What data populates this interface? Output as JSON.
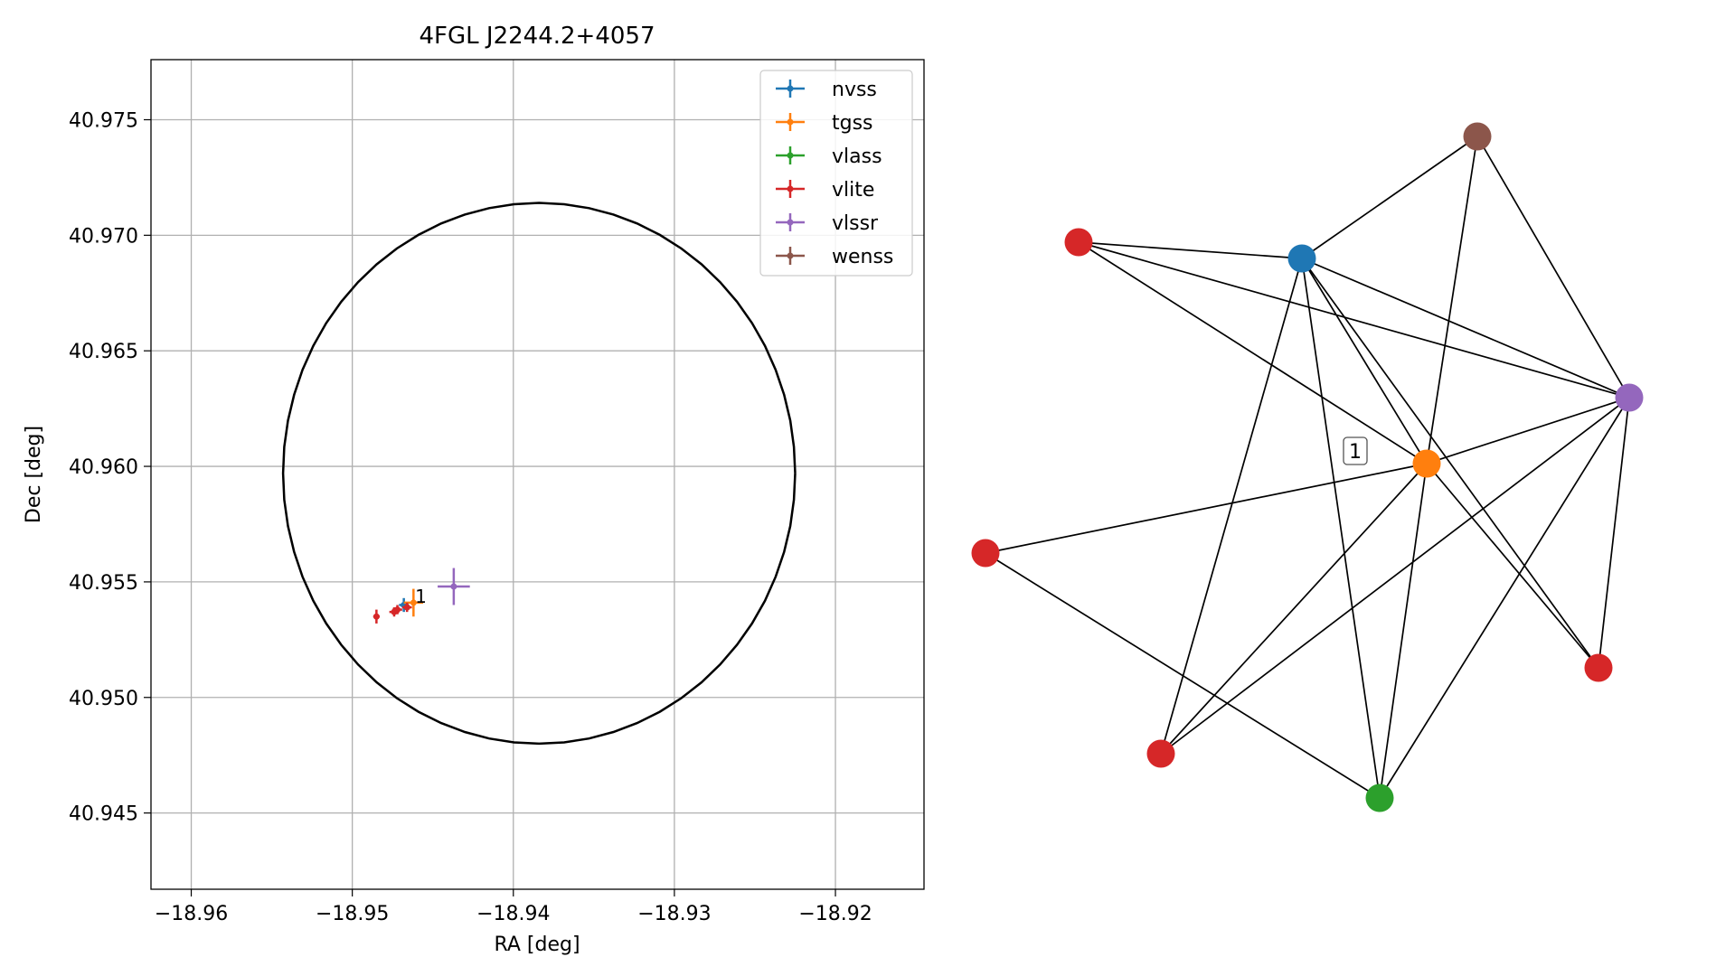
{
  "chart_data": [
    {
      "type": "scatter",
      "title": "4FGL J2244.2+4057",
      "xlabel": "RA [deg]",
      "ylabel": "Dec [deg]",
      "xlim": [
        -18.9625,
        -18.9145
      ],
      "ylim": [
        40.9417,
        40.9776
      ],
      "xticks": [
        -18.96,
        -18.95,
        -18.94,
        -18.93,
        -18.92
      ],
      "xtick_labels": [
        "−18.96",
        "−18.95",
        "−18.94",
        "−18.93",
        "−18.92"
      ],
      "yticks": [
        40.945,
        40.95,
        40.955,
        40.96,
        40.965,
        40.97,
        40.975
      ],
      "ytick_labels": [
        "40.945",
        "40.950",
        "40.955",
        "40.960",
        "40.965",
        "40.970",
        "40.975"
      ],
      "grid": true,
      "legend_position": "top-right",
      "circle": {
        "center_x": -18.9384,
        "center_y": 40.9597,
        "radius_x": 0.0159,
        "radius_y": 0.0117,
        "color": "#000000"
      },
      "series": [
        {
          "name": "nvss",
          "color": "#1f77b4",
          "points": [
            {
              "x": -18.9468,
              "y": 40.954,
              "xerr": 0.0003,
              "yerr": 0.0003
            }
          ]
        },
        {
          "name": "tgss",
          "color": "#ff7f0e",
          "points": [
            {
              "x": -18.9462,
              "y": 40.9541,
              "xerr": 0.0006,
              "yerr": 0.0006
            }
          ]
        },
        {
          "name": "vlass",
          "color": "#2ca02c",
          "points": [
            {
              "x": -18.9466,
              "y": 40.9539,
              "xerr": 0.0001,
              "yerr": 0.0001
            }
          ]
        },
        {
          "name": "vlite",
          "color": "#d62728",
          "points": [
            {
              "x": -18.9485,
              "y": 40.9535,
              "xerr": 0.0002,
              "yerr": 0.0003
            },
            {
              "x": -18.9474,
              "y": 40.9537,
              "xerr": 0.0003,
              "yerr": 0.0002
            },
            {
              "x": -18.9472,
              "y": 40.9538,
              "xerr": 0.0003,
              "yerr": 0.0002
            },
            {
              "x": -18.9466,
              "y": 40.9539,
              "xerr": 0.0003,
              "yerr": 0.0002
            }
          ]
        },
        {
          "name": "vlssr",
          "color": "#9467bd",
          "points": [
            {
              "x": -18.9437,
              "y": 40.9548,
              "xerr": 0.001,
              "yerr": 0.0008
            }
          ]
        },
        {
          "name": "wenss",
          "color": "#8c564b",
          "points": []
        }
      ],
      "annotations": [
        {
          "text": "1",
          "x": -18.9461,
          "y": 40.9544
        }
      ]
    },
    {
      "type": "network",
      "label": "1",
      "nodes": [
        {
          "id": "brown",
          "color": "#8c564b"
        },
        {
          "id": "red_top",
          "color": "#d62728"
        },
        {
          "id": "blue",
          "color": "#1f77b4"
        },
        {
          "id": "purple",
          "color": "#9467bd"
        },
        {
          "id": "orange",
          "color": "#ff7f0e"
        },
        {
          "id": "red_left",
          "color": "#d62728"
        },
        {
          "id": "red_right",
          "color": "#d62728"
        },
        {
          "id": "red_bottom",
          "color": "#d62728"
        },
        {
          "id": "green",
          "color": "#2ca02c"
        }
      ],
      "edges": [
        [
          "blue",
          "brown"
        ],
        [
          "blue",
          "red_top"
        ],
        [
          "blue",
          "purple"
        ],
        [
          "blue",
          "orange"
        ],
        [
          "blue",
          "red_right"
        ],
        [
          "blue",
          "red_bottom"
        ],
        [
          "blue",
          "green"
        ],
        [
          "brown",
          "purple"
        ],
        [
          "brown",
          "orange"
        ],
        [
          "red_top",
          "purple"
        ],
        [
          "red_top",
          "orange"
        ],
        [
          "orange",
          "purple"
        ],
        [
          "orange",
          "red_left"
        ],
        [
          "orange",
          "red_right"
        ],
        [
          "orange",
          "red_bottom"
        ],
        [
          "orange",
          "green"
        ],
        [
          "purple",
          "red_bottom"
        ],
        [
          "purple",
          "green"
        ],
        [
          "purple",
          "red_right"
        ],
        [
          "red_left",
          "green"
        ]
      ]
    }
  ]
}
